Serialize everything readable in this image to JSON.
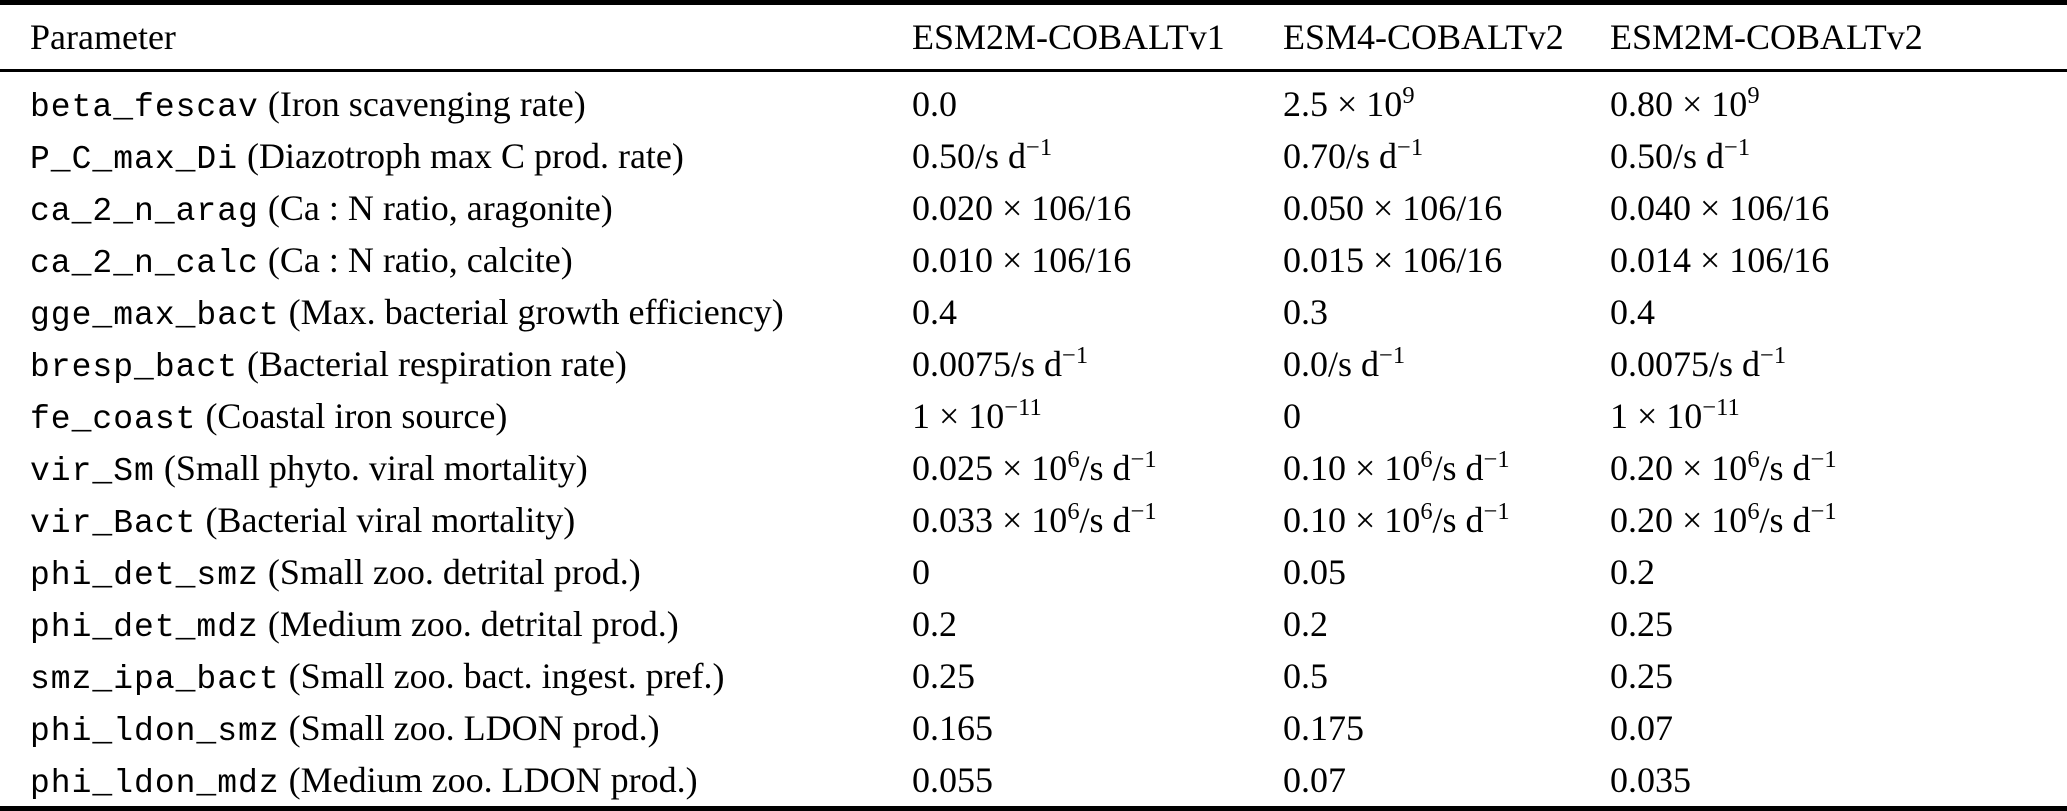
{
  "colors": {
    "text": "#000000",
    "background": "#ffffff",
    "rule": "#000000"
  },
  "table": {
    "columns": [
      "Parameter",
      "ESM2M-COBALTv1",
      "ESM4-COBALTv2",
      "ESM2M-COBALTv2"
    ],
    "rows": [
      {
        "name": "beta_fescav",
        "desc": "(Iron scavenging rate)",
        "values": [
          "0.0",
          "2.5 × 10^{9}",
          "0.80 × 10^{9}"
        ]
      },
      {
        "name": "P_C_max_Di",
        "desc": "(Diazotroph max C prod. rate)",
        "values": [
          "0.50/s d^{−1}",
          "0.70/s d^{−1}",
          "0.50/s d^{−1}"
        ]
      },
      {
        "name": "ca_2_n_arag",
        "desc": "(Ca : N ratio, aragonite)",
        "values": [
          "0.020 × 106/16",
          "0.050 × 106/16",
          "0.040 × 106/16"
        ]
      },
      {
        "name": "ca_2_n_calc",
        "desc": "(Ca : N ratio, calcite)",
        "values": [
          "0.010 × 106/16",
          "0.015 × 106/16",
          "0.014 × 106/16"
        ]
      },
      {
        "name": "gge_max_bact",
        "desc": "(Max. bacterial growth efficiency)",
        "values": [
          "0.4",
          "0.3",
          "0.4"
        ]
      },
      {
        "name": "bresp_bact",
        "desc": "(Bacterial respiration rate)",
        "values": [
          "0.0075/s d^{−1}",
          "0.0/s d^{−1}",
          "0.0075/s d^{−1}"
        ]
      },
      {
        "name": "fe_coast",
        "desc": "(Coastal iron source)",
        "values": [
          "1 × 10^{−11}",
          "0",
          "1 × 10^{−11}"
        ]
      },
      {
        "name": "vir_Sm",
        "desc": "(Small phyto. viral mortality)",
        "values": [
          "0.025 × 10^{6}/s d^{−1}",
          "0.10 × 10^{6}/s d^{−1}",
          "0.20 × 10^{6}/s d^{−1}"
        ]
      },
      {
        "name": "vir_Bact",
        "desc": "(Bacterial viral mortality)",
        "values": [
          "0.033 × 10^{6}/s d^{−1}",
          "0.10 × 10^{6}/s d^{−1}",
          "0.20 × 10^{6}/s d^{−1}"
        ]
      },
      {
        "name": "phi_det_smz",
        "desc": "(Small zoo. detrital prod.)",
        "values": [
          "0",
          "0.05",
          "0.2"
        ]
      },
      {
        "name": "phi_det_mdz",
        "desc": "(Medium zoo. detrital prod.)",
        "values": [
          "0.2",
          "0.2",
          "0.25"
        ]
      },
      {
        "name": "smz_ipa_bact",
        "desc": "(Small zoo. bact. ingest. pref.)",
        "values": [
          "0.25",
          "0.5",
          "0.25"
        ]
      },
      {
        "name": "phi_ldon_smz",
        "desc": "(Small zoo. LDON prod.)",
        "values": [
          "0.165",
          "0.175",
          "0.07"
        ]
      },
      {
        "name": "phi_ldon_mdz",
        "desc": "(Medium zoo. LDON prod.)",
        "values": [
          "0.055",
          "0.07",
          "0.035"
        ]
      }
    ]
  }
}
